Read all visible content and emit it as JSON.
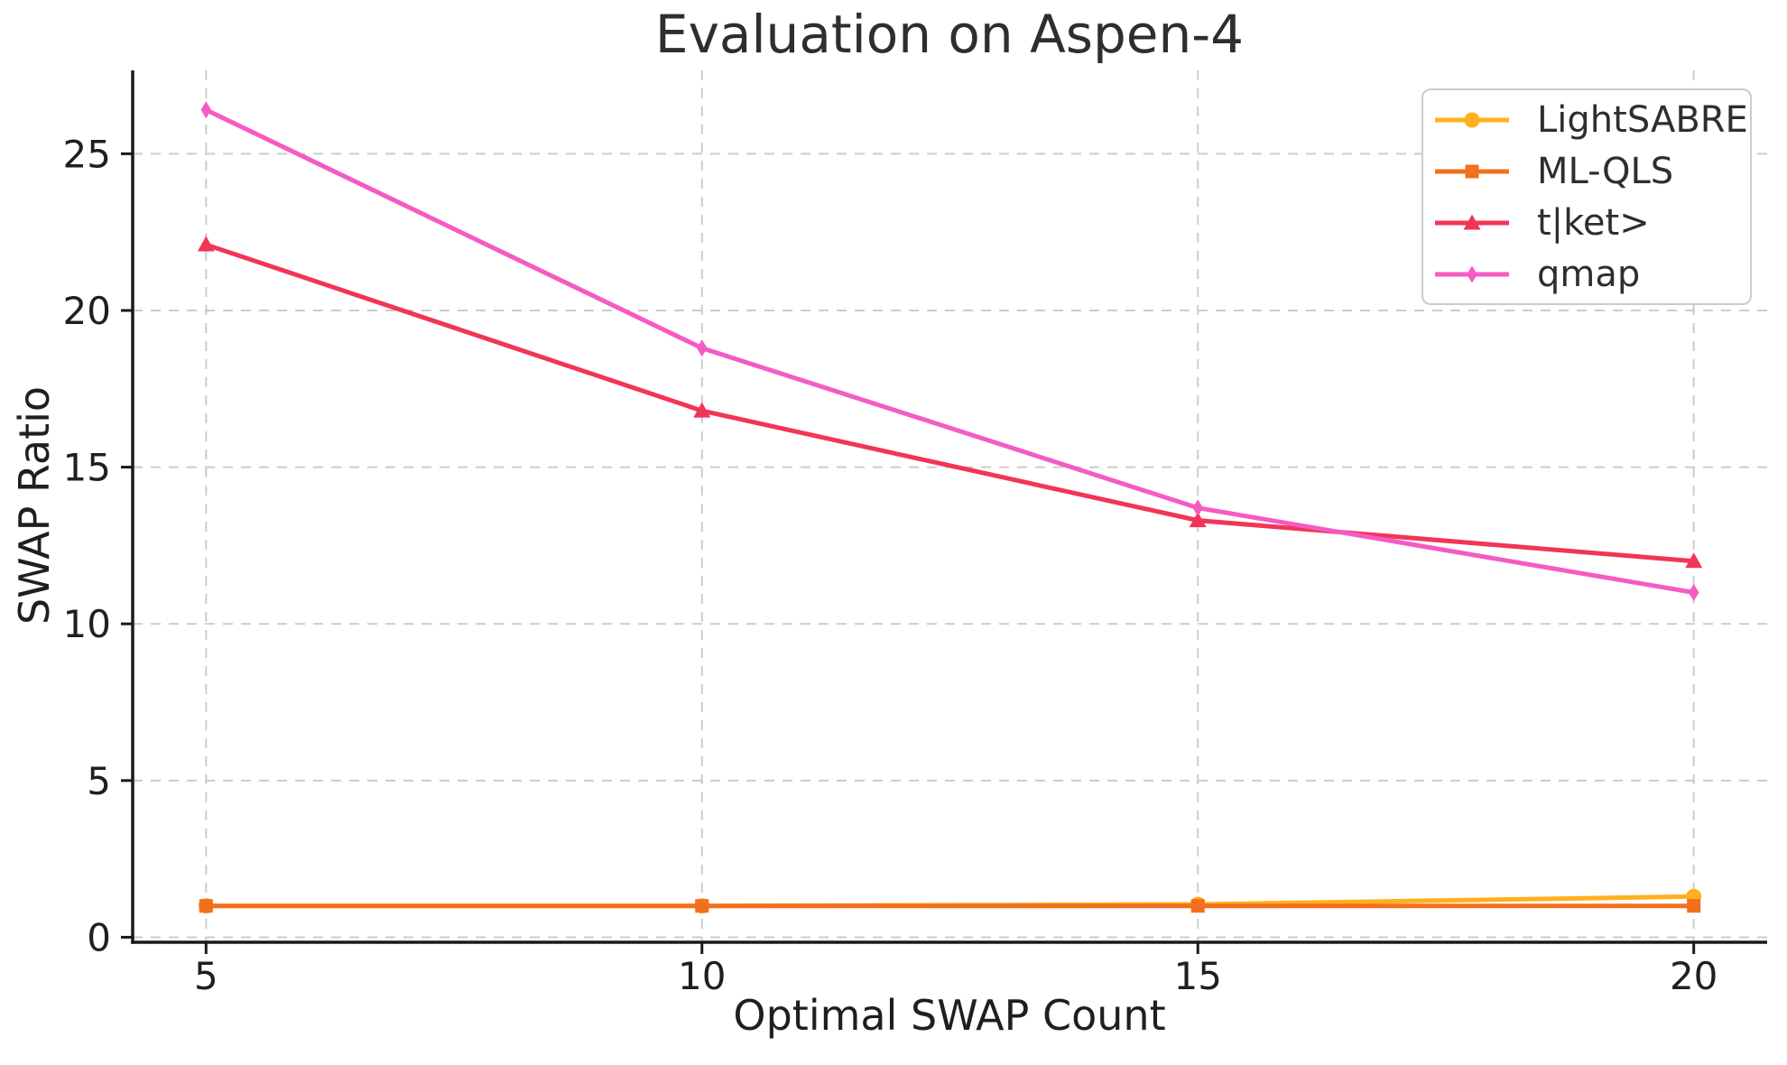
{
  "chart_data": {
    "type": "line",
    "title": "Evaluation on Aspen-4",
    "xlabel": "Optimal SWAP Count",
    "ylabel": "SWAP Ratio",
    "x": [
      5,
      10,
      15,
      20
    ],
    "xticks": [
      5,
      10,
      15,
      20
    ],
    "yticks": [
      0,
      5,
      10,
      15,
      20,
      25
    ],
    "xlim": [
      4.26,
      20.74
    ],
    "ylim": [
      -0.16,
      27.66
    ],
    "grid": true,
    "grid_style": "dashed",
    "legend_position": "upper right",
    "series": [
      {
        "name": "LightSABRE",
        "color": "#FFB01E",
        "marker": "circle",
        "values": [
          1.0,
          1.0,
          1.05,
          1.3
        ]
      },
      {
        "name": "ML-QLS",
        "color": "#F2701D",
        "marker": "square",
        "values": [
          1.0,
          1.0,
          1.0,
          1.0
        ]
      },
      {
        "name": "t|ket>",
        "color": "#F23557",
        "marker": "triangle",
        "values": [
          22.1,
          16.8,
          13.3,
          12.0
        ]
      },
      {
        "name": "qmap",
        "color": "#F45BC4",
        "marker": "diamond",
        "values": [
          26.4,
          18.8,
          13.7,
          11.0
        ]
      }
    ],
    "colors": {
      "grid": "#cccccc",
      "spine": "#1a1a1a",
      "text": "#1f1f1f",
      "title": "#2e2e2e"
    }
  }
}
